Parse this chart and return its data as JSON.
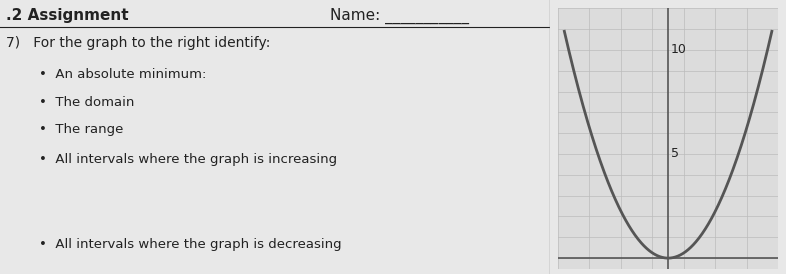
{
  "fig_width": 7.86,
  "fig_height": 2.74,
  "dpi": 100,
  "background_color": "#e8e8e8",
  "text_color": "#222222",
  "header_text": ".2 Assignment",
  "name_label": "Name: ___________",
  "question_number": "7)",
  "question_text": "For the graph to the right identify:",
  "bullets": [
    "An absolute minimum:",
    "The domain",
    "The range",
    "All intervals where the graph is increasing",
    "",
    "All intervals where the graph is decreasing"
  ],
  "graph_bg": "#dcdcdc",
  "curve_color": "#555555",
  "grid_color": "#bbbbbb",
  "axis_color": "#555555",
  "yticks": [
    5,
    10
  ],
  "xlim": [
    -3.5,
    3.5
  ],
  "ylim": [
    -0.5,
    12
  ],
  "parabola_vertex_x": 0,
  "parabola_vertex_y": 0,
  "parabola_a": 1.0,
  "curve_linewidth": 2.0
}
